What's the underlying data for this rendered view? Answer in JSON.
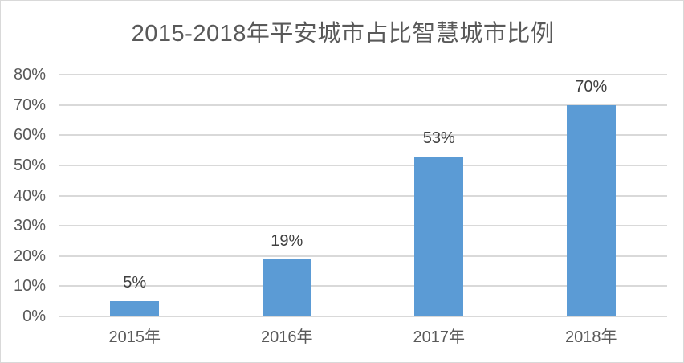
{
  "chart_data": {
    "type": "bar",
    "title": "2015-2018年平安城市占比智慧城市比例",
    "categories": [
      "2015年",
      "2016年",
      "2017年",
      "2018年"
    ],
    "values": [
      5,
      19,
      53,
      70
    ],
    "value_labels": [
      "5%",
      "19%",
      "53%",
      "70%"
    ],
    "xlabel": "",
    "ylabel": "",
    "ylim": [
      0,
      80
    ],
    "y_tick_step": 10,
    "y_tick_labels": [
      "0%",
      "10%",
      "20%",
      "30%",
      "40%",
      "50%",
      "60%",
      "70%",
      "80%"
    ],
    "grid": "horizontal",
    "legend_position": "none",
    "colors": {
      "bar": "#5b9bd5",
      "gridline": "#d9d9d9",
      "canvas_border": "#d9d9d9",
      "title_text": "#595959",
      "axis_tick_text": "#595959",
      "data_label_text": "#404040",
      "background": "#ffffff"
    }
  }
}
